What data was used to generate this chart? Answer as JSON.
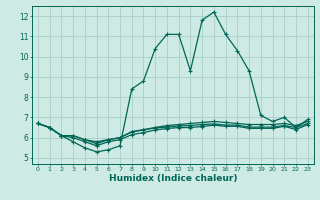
{
  "xlabel": "Humidex (Indice chaleur)",
  "ylabel": "",
  "xlim": [
    -0.5,
    23.5
  ],
  "ylim": [
    4.7,
    12.5
  ],
  "yticks": [
    5,
    6,
    7,
    8,
    9,
    10,
    11,
    12
  ],
  "xticks": [
    0,
    1,
    2,
    3,
    4,
    5,
    6,
    7,
    8,
    9,
    10,
    11,
    12,
    13,
    14,
    15,
    16,
    17,
    18,
    19,
    20,
    21,
    22,
    23
  ],
  "bg_color": "#ceeae4",
  "grid_color": "#aacec8",
  "line_color": "#006655",
  "series": [
    [
      6.7,
      6.5,
      6.1,
      5.8,
      5.5,
      5.3,
      5.4,
      5.6,
      8.4,
      8.8,
      10.4,
      11.1,
      11.1,
      9.3,
      11.8,
      12.2,
      11.1,
      10.3,
      9.3,
      7.1,
      6.8,
      7.0,
      6.5,
      6.9
    ],
    [
      6.7,
      6.5,
      6.1,
      6.1,
      5.9,
      5.8,
      5.9,
      6.0,
      6.3,
      6.4,
      6.5,
      6.6,
      6.65,
      6.7,
      6.75,
      6.8,
      6.75,
      6.7,
      6.65,
      6.65,
      6.65,
      6.7,
      6.6,
      6.8
    ],
    [
      6.7,
      6.5,
      6.1,
      6.1,
      5.9,
      5.7,
      5.9,
      6.0,
      6.28,
      6.38,
      6.48,
      6.52,
      6.58,
      6.6,
      6.65,
      6.68,
      6.62,
      6.62,
      6.52,
      6.52,
      6.52,
      6.6,
      6.5,
      6.7
    ],
    [
      6.7,
      6.5,
      6.1,
      6.0,
      5.8,
      5.6,
      5.8,
      5.9,
      6.15,
      6.25,
      6.38,
      6.45,
      6.5,
      6.5,
      6.55,
      6.62,
      6.56,
      6.56,
      6.46,
      6.46,
      6.46,
      6.56,
      6.4,
      6.65
    ]
  ],
  "marker": "+",
  "markersize": 3.5,
  "linewidth": 0.9
}
